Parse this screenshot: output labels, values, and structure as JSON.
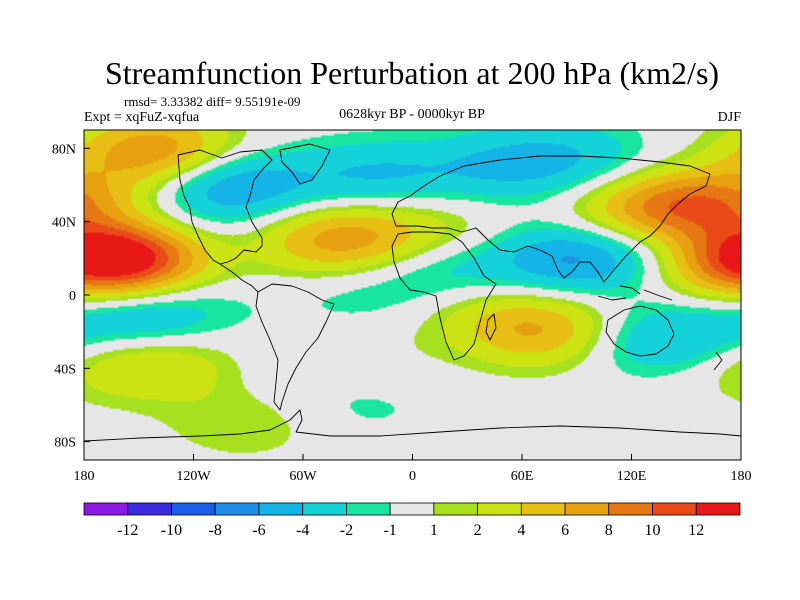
{
  "chart_data": {
    "type": "heatmap",
    "title": "Streamfunction Perturbation at 200 hPa (km2/s)",
    "subtitle_left_top": "rmsd= 3.33382 diff= 9.55191e-09",
    "subtitle_left": "Expt = xqFuZ-xqfua",
    "subtitle_center": "0628kyr BP - 0000kyr BP",
    "subtitle_right": "DJF",
    "xlabel": "",
    "ylabel": "",
    "xlim": [
      -180,
      180
    ],
    "ylim": [
      -90,
      90
    ],
    "x_ticks": [
      {
        "value": -180,
        "label": "180"
      },
      {
        "value": -120,
        "label": "120W"
      },
      {
        "value": -60,
        "label": "60W"
      },
      {
        "value": 0,
        "label": "0"
      },
      {
        "value": 60,
        "label": "60E"
      },
      {
        "value": 120,
        "label": "120E"
      },
      {
        "value": 180,
        "label": "180"
      }
    ],
    "y_ticks": [
      {
        "value": 80,
        "label": "80N"
      },
      {
        "value": 40,
        "label": "40N"
      },
      {
        "value": 0,
        "label": "0"
      },
      {
        "value": -40,
        "label": "40S"
      },
      {
        "value": -80,
        "label": "80S"
      }
    ],
    "levels": [
      -12,
      -10,
      -8,
      -6,
      -4,
      -2,
      -1,
      1,
      2,
      4,
      6,
      8,
      10,
      12
    ],
    "level_labels": [
      "-12",
      "-10",
      "-8",
      "-6",
      "-4",
      "-2",
      "-1",
      "1",
      "2",
      "4",
      "6",
      "8",
      "10",
      "12"
    ],
    "colors": [
      "#8c1ae0",
      "#3a2be0",
      "#1a5ee8",
      "#1e8ee6",
      "#14b4e6",
      "#14d2d8",
      "#18e6a0",
      "#e6e6e6",
      "#a6e01e",
      "#cde212",
      "#e6be14",
      "#e6a010",
      "#e67814",
      "#ea4a18",
      "#e81818"
    ],
    "anomaly_centers": [
      {
        "lon": -155,
        "lat": 20,
        "value": 12.5
      },
      {
        "lon": -40,
        "lat": 30,
        "value": 7
      },
      {
        "lon": 10,
        "lat": 35,
        "value": 2.5
      },
      {
        "lon": 130,
        "lat": 45,
        "value": 6
      },
      {
        "lon": 165,
        "lat": 50,
        "value": 7
      },
      {
        "lon": -140,
        "lat": 78,
        "value": 8
      },
      {
        "lon": -100,
        "lat": 60,
        "value": -6.5
      },
      {
        "lon": -20,
        "lat": 65,
        "value": -4
      },
      {
        "lon": 50,
        "lat": 70,
        "value": -3.5
      },
      {
        "lon": 90,
        "lat": 75,
        "value": -3
      },
      {
        "lon": -130,
        "lat": 30,
        "value": -2
      },
      {
        "lon": -130,
        "lat": 0,
        "value": -1.5
      },
      {
        "lon": -30,
        "lat": 0,
        "value": -1.5
      },
      {
        "lon": 15,
        "lat": 15,
        "value": -3
      },
      {
        "lon": 90,
        "lat": 20,
        "value": -6.5
      },
      {
        "lon": 155,
        "lat": 28,
        "value": -3.5
      },
      {
        "lon": 175,
        "lat": 20,
        "value": 8
      },
      {
        "lon": -150,
        "lat": -15,
        "value": -4
      },
      {
        "lon": -170,
        "lat": -35,
        "value": 4
      },
      {
        "lon": -130,
        "lat": -38,
        "value": 3
      },
      {
        "lon": -70,
        "lat": -40,
        "value": -1.5
      },
      {
        "lon": -40,
        "lat": -38,
        "value": 1.5
      },
      {
        "lon": 75,
        "lat": -20,
        "value": 6
      },
      {
        "lon": 40,
        "lat": -10,
        "value": 2
      },
      {
        "lon": 130,
        "lat": -25,
        "value": -5
      },
      {
        "lon": 170,
        "lat": -30,
        "value": -3
      },
      {
        "lon": 150,
        "lat": -32,
        "value": 1.5
      },
      {
        "lon": -90,
        "lat": -70,
        "value": 2
      },
      {
        "lon": -30,
        "lat": -60,
        "value": -1.5
      }
    ]
  }
}
